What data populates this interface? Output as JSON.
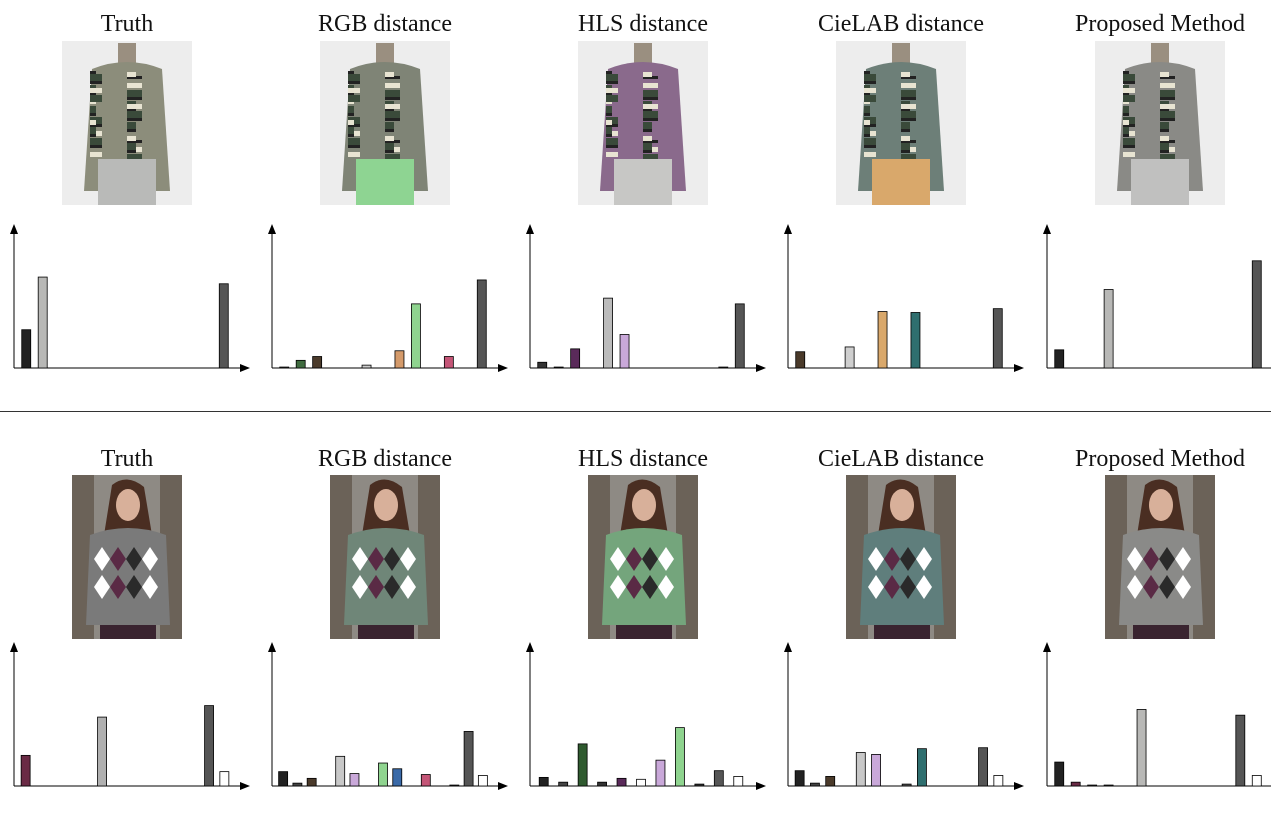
{
  "rows": [
    {
      "subject": "blouse-on-mannequin",
      "panels": [
        {
          "title": "Truth",
          "tint": [
            "#8c8d7b",
            "#ededed"
          ],
          "skirt": "#b9bab8",
          "chart_data": {
            "type": "bar",
            "values": [
              40,
              95,
              0,
              0,
              0,
              0,
              0,
              0,
              0,
              0,
              0,
              0,
              88
            ],
            "colors": [
              "#222222",
              "#b8b8b6",
              "#ffffff",
              "#ffffff",
              "#ffffff",
              "#ffffff",
              "#ffffff",
              "#ffffff",
              "#ffffff",
              "#ffffff",
              "#ffffff",
              "#ffffff",
              "#555555"
            ],
            "xlabel": "",
            "ylabel": "",
            "ylim": [
              0,
              140
            ]
          }
        },
        {
          "title": "RGB  distance",
          "tint": [
            "#7f8476",
            "#ededed"
          ],
          "skirt": "#8ed492",
          "chart_data": {
            "type": "bar",
            "values": [
              1,
              8,
              12,
              0,
              0,
              3,
              0,
              18,
              67,
              0,
              12,
              0,
              92
            ],
            "colors": [
              "#555555",
              "#3f6b3f",
              "#4a3a2a",
              "#ffffff",
              "#ffffff",
              "#cccccc",
              "#ffffff",
              "#d49a6a",
              "#8fd48f",
              "#ffffff",
              "#c45577",
              "#ffffff",
              "#555555"
            ],
            "xlabel": "",
            "ylabel": "",
            "ylim": [
              0,
              140
            ]
          }
        },
        {
          "title": "HLS  distance",
          "tint": [
            "#8a6a8c",
            "#ededed"
          ],
          "skirt": "#c7c7c5",
          "chart_data": {
            "type": "bar",
            "values": [
              6,
              1,
              20,
              0,
              73,
              35,
              0,
              0,
              0,
              0,
              0,
              1,
              67
            ],
            "colors": [
              "#333333",
              "#222222",
              "#5a2a5a",
              "#ffffff",
              "#bbbbbb",
              "#c9a8d9",
              "#ffffff",
              "#ffffff",
              "#ffffff",
              "#ffffff",
              "#ffffff",
              "#333333",
              "#555555"
            ],
            "xlabel": "",
            "ylabel": "",
            "ylim": [
              0,
              140
            ]
          }
        },
        {
          "title": "CieLAB  distance",
          "tint": [
            "#6d7f78",
            "#ededed"
          ],
          "skirt": "#d9a86b",
          "chart_data": {
            "type": "bar",
            "values": [
              17,
              0,
              0,
              22,
              0,
              59,
              0,
              58,
              0,
              0,
              0,
              0,
              62
            ],
            "colors": [
              "#4a3a2a",
              "#ffffff",
              "#ffffff",
              "#cfcfcf",
              "#ffffff",
              "#d9a86b",
              "#ffffff",
              "#2f6f6f",
              "#ffffff",
              "#ffffff",
              "#ffffff",
              "#ffffff",
              "#555555"
            ],
            "xlabel": "",
            "ylabel": "",
            "ylim": [
              0,
              140
            ]
          }
        },
        {
          "title": "Proposed Method",
          "tint": [
            "#8a8a86",
            "#ededed"
          ],
          "skirt": "#c0c0bf",
          "chart_data": {
            "type": "bar",
            "values": [
              19,
              0,
              0,
              82,
              0,
              0,
              0,
              0,
              0,
              0,
              0,
              0,
              112
            ],
            "colors": [
              "#222222",
              "#ffffff",
              "#ffffff",
              "#b8b8b6",
              "#ffffff",
              "#ffffff",
              "#ffffff",
              "#ffffff",
              "#ffffff",
              "#ffffff",
              "#ffffff",
              "#ffffff",
              "#555555"
            ],
            "xlabel": "",
            "ylabel": "",
            "ylim": [
              0,
              140
            ]
          }
        }
      ]
    },
    {
      "subject": "woman-in-argyle-sweater",
      "panels": [
        {
          "title": "Truth",
          "tint": [
            "#7a7a7a",
            "#6b6258"
          ],
          "skirt": "#3a2430",
          "chart_data": {
            "type": "bar",
            "values": [
              32,
              0,
              0,
              0,
              0,
              72,
              0,
              0,
              0,
              0,
              0,
              0,
              84,
              15
            ],
            "colors": [
              "#6a2a45",
              "#ffffff",
              "#ffffff",
              "#ffffff",
              "#ffffff",
              "#b0b0b0",
              "#ffffff",
              "#ffffff",
              "#ffffff",
              "#ffffff",
              "#ffffff",
              "#ffffff",
              "#555555",
              "#ffffff"
            ],
            "xlabel": "",
            "ylabel": "",
            "ylim": [
              0,
              140
            ]
          }
        },
        {
          "title": "RGB  distance",
          "tint": [
            "#6f8678",
            "#6b6258"
          ],
          "skirt": "#3a2430",
          "chart_data": {
            "type": "bar",
            "values": [
              15,
              3,
              8,
              0,
              31,
              13,
              0,
              24,
              18,
              0,
              12,
              0,
              1,
              57,
              11
            ],
            "colors": [
              "#222222",
              "#444444",
              "#4a3a2a",
              "#ffffff",
              "#c8c8c8",
              "#c9a8d9",
              "#ffffff",
              "#8fd48f",
              "#3a6aa8",
              "#ffffff",
              "#c45577",
              "#ffffff",
              "#333333",
              "#555555",
              "#ffffff"
            ],
            "xlabel": "",
            "ylabel": "",
            "ylim": [
              0,
              140
            ]
          }
        },
        {
          "title": "HLS  distance",
          "tint": [
            "#74a57c",
            "#6b6258"
          ],
          "skirt": "#3a2430",
          "chart_data": {
            "type": "bar",
            "values": [
              9,
              4,
              44,
              4,
              8,
              7,
              27,
              61,
              2,
              16,
              10
            ],
            "colors": [
              "#222222",
              "#444444",
              "#2f5a2f",
              "#333333",
              "#5a2a5a",
              "#ffffff",
              "#c9a8d9",
              "#8fd48f",
              "#333333",
              "#555555",
              "#ffffff"
            ],
            "xlabel": "",
            "ylabel": "",
            "ylim": [
              0,
              140
            ]
          }
        },
        {
          "title": "CieLAB  distance",
          "tint": [
            "#5f7e7c",
            "#6b6258"
          ],
          "skirt": "#3a2430",
          "chart_data": {
            "type": "bar",
            "values": [
              16,
              3,
              10,
              0,
              35,
              33,
              0,
              2,
              39,
              0,
              0,
              0,
              40,
              11
            ],
            "colors": [
              "#222222",
              "#444444",
              "#4a3a2a",
              "#ffffff",
              "#c8c8c8",
              "#c9a8d9",
              "#ffffff",
              "#555555",
              "#2f6f6f",
              "#ffffff",
              "#ffffff",
              "#ffffff",
              "#555555",
              "#ffffff"
            ],
            "xlabel": "",
            "ylabel": "",
            "ylim": [
              0,
              140
            ]
          }
        },
        {
          "title": "Proposed Method",
          "tint": [
            "#8a8a88",
            "#6b6258"
          ],
          "skirt": "#3a2430",
          "chart_data": {
            "type": "bar",
            "values": [
              25,
              4,
              1,
              1,
              0,
              80,
              0,
              0,
              0,
              0,
              0,
              74,
              11
            ],
            "colors": [
              "#222222",
              "#6a2a45",
              "#444444",
              "#444444",
              "#ffffff",
              "#b8b8b6",
              "#ffffff",
              "#ffffff",
              "#ffffff",
              "#ffffff",
              "#ffffff",
              "#555555",
              "#ffffff"
            ],
            "xlabel": "",
            "ylabel": "",
            "ylim": [
              0,
              140
            ]
          }
        }
      ]
    }
  ]
}
